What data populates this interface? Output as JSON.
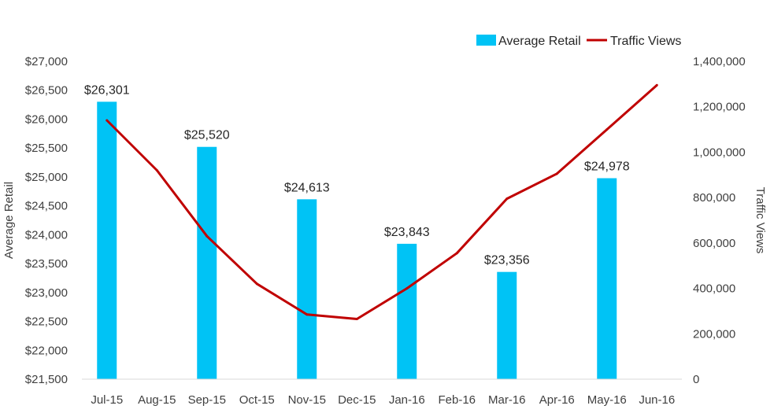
{
  "chart_data": {
    "type": "bar",
    "title": "",
    "categories": [
      "Jul-15",
      "Aug-15",
      "Sep-15",
      "Oct-15",
      "Nov-15",
      "Dec-15",
      "Jan-16",
      "Feb-16",
      "Mar-16",
      "Apr-16",
      "May-16",
      "Jun-16"
    ],
    "series": [
      {
        "name": "Average Retail",
        "type": "bar",
        "axis": "left",
        "color": "#00C3F5",
        "values": [
          26301,
          null,
          25520,
          null,
          24613,
          null,
          23843,
          null,
          23356,
          null,
          24978,
          null
        ],
        "data_labels": [
          "$26,301",
          "",
          "$25,520",
          "",
          "$24,613",
          "",
          "$23,843",
          "",
          "$23,356",
          "",
          "$24,978",
          ""
        ]
      },
      {
        "name": "Traffic Views",
        "type": "line",
        "axis": "right",
        "color": "#C00000",
        "values": [
          1140000,
          920000,
          630000,
          420000,
          285000,
          265000,
          400000,
          555000,
          795000,
          905000,
          1100000,
          1295000
        ]
      }
    ],
    "y_left": {
      "label": "Average Retail",
      "range": [
        21500,
        27000
      ],
      "ticks": [
        "$27,000",
        "$26,500",
        "$26,000",
        "$25,500",
        "$25,000",
        "$24,500",
        "$24,000",
        "$23,500",
        "$23,000",
        "$22,500",
        "$22,000",
        "$21,500"
      ]
    },
    "y_right": {
      "label": "Traffic Views",
      "range": [
        0,
        1400000
      ],
      "ticks": [
        "1,400,000",
        "1,200,000",
        "1,000,000",
        "800,000",
        "600,000",
        "400,000",
        "200,000",
        "0"
      ]
    },
    "legend": {
      "position": "top-right"
    },
    "grid": false
  }
}
